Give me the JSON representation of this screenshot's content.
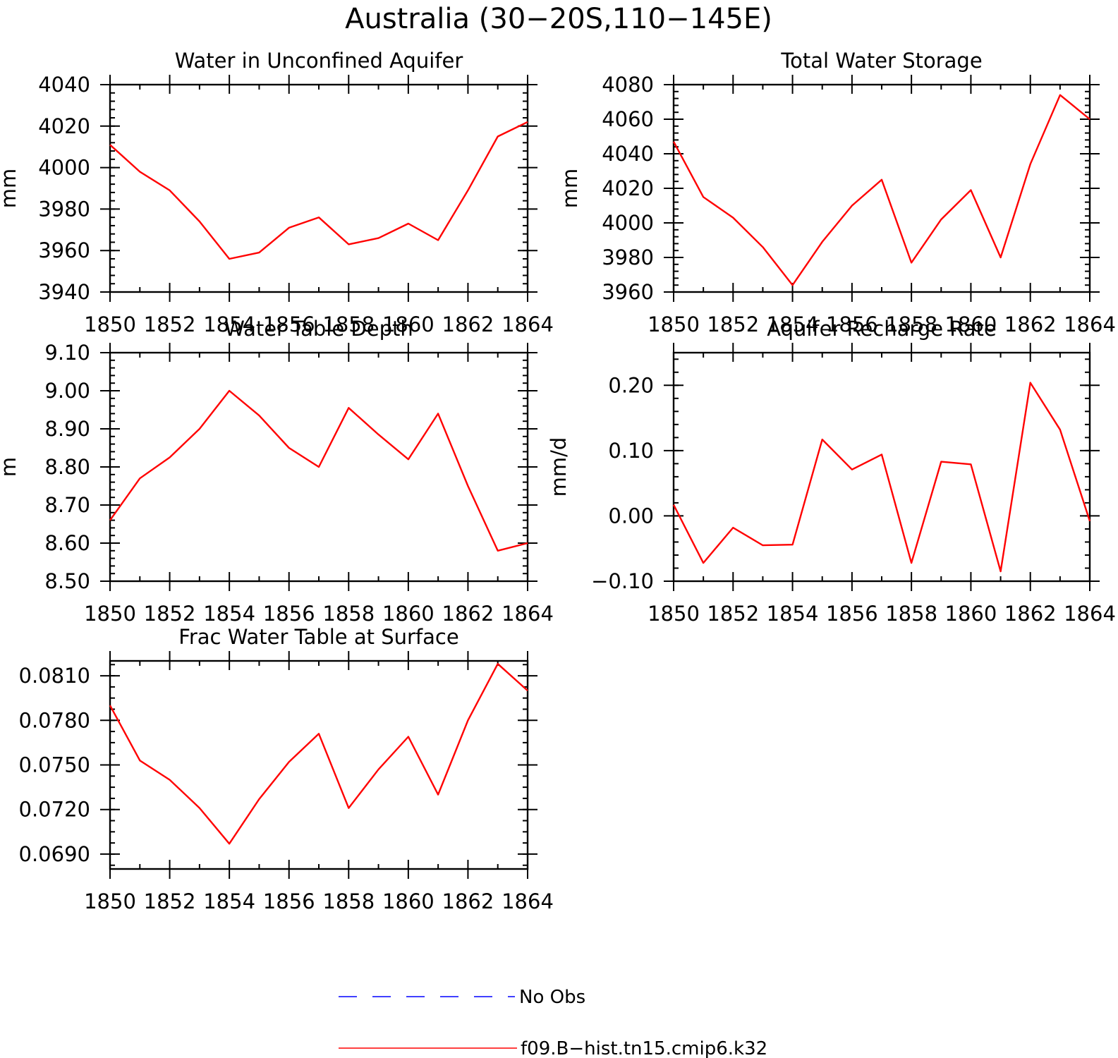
{
  "figure_title": "Australia (30−20S,110−145E)",
  "colors": {
    "model_line": "#ff0000",
    "obs_line": "#0000ff",
    "axes": "#000000"
  },
  "legend": {
    "entries": [
      {
        "label": "No Obs",
        "style": "dashed",
        "color": "#0000ff"
      },
      {
        "label": "f09.B−hist.tn15.cmip6.k32",
        "style": "solid",
        "color": "#ff0000"
      }
    ]
  },
  "chart_data": [
    {
      "type": "line",
      "title": "Water in Unconfined Aquifer",
      "ylabel": "mm",
      "xlabel": "",
      "xlim": [
        1850,
        1864
      ],
      "ylim": [
        3940,
        4040
      ],
      "xticks": [
        "1850",
        "1852",
        "1854",
        "1856",
        "1858",
        "1860",
        "1862",
        "1864"
      ],
      "yticks": [
        "3940",
        "3960",
        "3980",
        "4000",
        "4020",
        "4040"
      ],
      "x": [
        1850,
        1851,
        1852,
        1853,
        1854,
        1855,
        1856,
        1857,
        1858,
        1859,
        1860,
        1861,
        1862,
        1863,
        1864
      ],
      "series": [
        {
          "name": "f09.B−hist.tn15.cmip6.k32",
          "values": [
            4011,
            3998,
            3989,
            3974,
            3956,
            3959,
            3971,
            3976,
            3963,
            3966,
            3973,
            3965,
            3989,
            4015,
            4022
          ]
        }
      ]
    },
    {
      "type": "line",
      "title": "Total Water Storage",
      "ylabel": "mm",
      "xlabel": "",
      "xlim": [
        1850,
        1864
      ],
      "ylim": [
        3960,
        4080
      ],
      "xticks": [
        "1850",
        "1852",
        "1854",
        "1856",
        "1858",
        "1860",
        "1862",
        "1864"
      ],
      "yticks": [
        "3960",
        "3980",
        "4000",
        "4020",
        "4040",
        "4060",
        "4080"
      ],
      "x": [
        1850,
        1851,
        1852,
        1853,
        1854,
        1855,
        1856,
        1857,
        1858,
        1859,
        1860,
        1861,
        1862,
        1863,
        1864
      ],
      "series": [
        {
          "name": "f09.B−hist.tn15.cmip6.k32",
          "values": [
            4047,
            4015,
            4003,
            3986,
            3964,
            3989,
            4010,
            4025,
            3977,
            4002,
            4019,
            3980,
            4034,
            4074,
            4060
          ]
        }
      ]
    },
    {
      "type": "line",
      "title": "Water Table Depth",
      "ylabel": "m",
      "xlabel": "",
      "xlim": [
        1850,
        1864
      ],
      "ylim": [
        8.5,
        9.1
      ],
      "xticks": [
        "1850",
        "1852",
        "1854",
        "1856",
        "1858",
        "1860",
        "1862",
        "1864"
      ],
      "yticks": [
        "8.50",
        "8.60",
        "8.70",
        "8.80",
        "8.90",
        "9.00",
        "9.10"
      ],
      "x": [
        1850,
        1851,
        1852,
        1853,
        1854,
        1855,
        1856,
        1857,
        1858,
        1859,
        1860,
        1861,
        1862,
        1863,
        1864
      ],
      "series": [
        {
          "name": "f09.B−hist.tn15.cmip6.k32",
          "values": [
            8.66,
            8.77,
            8.825,
            8.9,
            9.0,
            8.935,
            8.85,
            8.8,
            8.955,
            8.885,
            8.82,
            8.94,
            8.75,
            8.58,
            8.6
          ]
        }
      ]
    },
    {
      "type": "line",
      "title": "Aquifer Recharge Rate",
      "ylabel": "mm/d",
      "xlabel": "",
      "xlim": [
        1850,
        1864
      ],
      "ylim": [
        -0.1,
        0.25
      ],
      "xticks": [
        "1850",
        "1852",
        "1854",
        "1856",
        "1858",
        "1860",
        "1862",
        "1864"
      ],
      "yticks": [
        "−0.10",
        "0.00",
        "0.10",
        "0.20"
      ],
      "x": [
        1850,
        1851,
        1852,
        1853,
        1854,
        1855,
        1856,
        1857,
        1858,
        1859,
        1860,
        1861,
        1862,
        1863,
        1864
      ],
      "series": [
        {
          "name": "f09.B−hist.tn15.cmip6.k32",
          "values": [
            0.017,
            -0.072,
            -0.018,
            -0.045,
            -0.044,
            0.117,
            0.071,
            0.094,
            -0.072,
            0.083,
            0.079,
            -0.085,
            0.204,
            0.132,
            -0.008
          ]
        }
      ]
    },
    {
      "type": "line",
      "title": "Frac Water Table at Surface",
      "ylabel": "",
      "xlabel": "",
      "xlim": [
        1850,
        1864
      ],
      "ylim": [
        0.068,
        0.082
      ],
      "xticks": [
        "1850",
        "1852",
        "1854",
        "1856",
        "1858",
        "1860",
        "1862",
        "1864"
      ],
      "yticks": [
        "0.0690",
        "0.0720",
        "0.0750",
        "0.0780",
        "0.0810"
      ],
      "x": [
        1850,
        1851,
        1852,
        1853,
        1854,
        1855,
        1856,
        1857,
        1858,
        1859,
        1860,
        1861,
        1862,
        1863,
        1864
      ],
      "series": [
        {
          "name": "f09.B−hist.tn15.cmip6.k32",
          "values": [
            0.079,
            0.0753,
            0.074,
            0.0721,
            0.0697,
            0.0727,
            0.0752,
            0.0771,
            0.0721,
            0.0747,
            0.0769,
            0.073,
            0.078,
            0.0818,
            0.08
          ]
        }
      ]
    }
  ]
}
